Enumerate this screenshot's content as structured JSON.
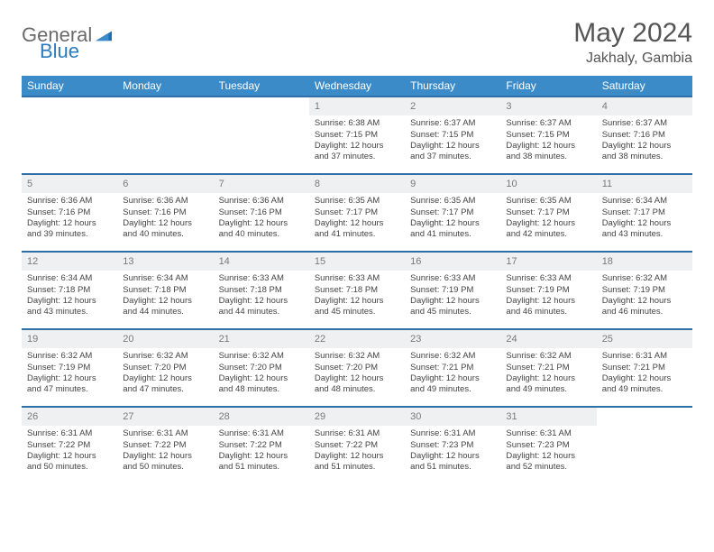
{
  "brand": {
    "part1": "General",
    "part2": "Blue"
  },
  "title": "May 2024",
  "location": "Jakhaly, Gambia",
  "colors": {
    "header_bg": "#3b8bc9",
    "header_text": "#ffffff",
    "daynum_bg": "#eef0f1",
    "daynum_text": "#7a7a7a",
    "row_border": "#2e6fa7",
    "body_text": "#444444",
    "brand_gray": "#6b6b6b",
    "brand_blue": "#2b7bbf"
  },
  "weekdays": [
    "Sunday",
    "Monday",
    "Tuesday",
    "Wednesday",
    "Thursday",
    "Friday",
    "Saturday"
  ],
  "weeks": [
    [
      {
        "n": "",
        "sr": "",
        "ss": "",
        "dl": ""
      },
      {
        "n": "",
        "sr": "",
        "ss": "",
        "dl": ""
      },
      {
        "n": "",
        "sr": "",
        "ss": "",
        "dl": ""
      },
      {
        "n": "1",
        "sr": "Sunrise: 6:38 AM",
        "ss": "Sunset: 7:15 PM",
        "dl": "Daylight: 12 hours and 37 minutes."
      },
      {
        "n": "2",
        "sr": "Sunrise: 6:37 AM",
        "ss": "Sunset: 7:15 PM",
        "dl": "Daylight: 12 hours and 37 minutes."
      },
      {
        "n": "3",
        "sr": "Sunrise: 6:37 AM",
        "ss": "Sunset: 7:15 PM",
        "dl": "Daylight: 12 hours and 38 minutes."
      },
      {
        "n": "4",
        "sr": "Sunrise: 6:37 AM",
        "ss": "Sunset: 7:16 PM",
        "dl": "Daylight: 12 hours and 38 minutes."
      }
    ],
    [
      {
        "n": "5",
        "sr": "Sunrise: 6:36 AM",
        "ss": "Sunset: 7:16 PM",
        "dl": "Daylight: 12 hours and 39 minutes."
      },
      {
        "n": "6",
        "sr": "Sunrise: 6:36 AM",
        "ss": "Sunset: 7:16 PM",
        "dl": "Daylight: 12 hours and 40 minutes."
      },
      {
        "n": "7",
        "sr": "Sunrise: 6:36 AM",
        "ss": "Sunset: 7:16 PM",
        "dl": "Daylight: 12 hours and 40 minutes."
      },
      {
        "n": "8",
        "sr": "Sunrise: 6:35 AM",
        "ss": "Sunset: 7:17 PM",
        "dl": "Daylight: 12 hours and 41 minutes."
      },
      {
        "n": "9",
        "sr": "Sunrise: 6:35 AM",
        "ss": "Sunset: 7:17 PM",
        "dl": "Daylight: 12 hours and 41 minutes."
      },
      {
        "n": "10",
        "sr": "Sunrise: 6:35 AM",
        "ss": "Sunset: 7:17 PM",
        "dl": "Daylight: 12 hours and 42 minutes."
      },
      {
        "n": "11",
        "sr": "Sunrise: 6:34 AM",
        "ss": "Sunset: 7:17 PM",
        "dl": "Daylight: 12 hours and 43 minutes."
      }
    ],
    [
      {
        "n": "12",
        "sr": "Sunrise: 6:34 AM",
        "ss": "Sunset: 7:18 PM",
        "dl": "Daylight: 12 hours and 43 minutes."
      },
      {
        "n": "13",
        "sr": "Sunrise: 6:34 AM",
        "ss": "Sunset: 7:18 PM",
        "dl": "Daylight: 12 hours and 44 minutes."
      },
      {
        "n": "14",
        "sr": "Sunrise: 6:33 AM",
        "ss": "Sunset: 7:18 PM",
        "dl": "Daylight: 12 hours and 44 minutes."
      },
      {
        "n": "15",
        "sr": "Sunrise: 6:33 AM",
        "ss": "Sunset: 7:18 PM",
        "dl": "Daylight: 12 hours and 45 minutes."
      },
      {
        "n": "16",
        "sr": "Sunrise: 6:33 AM",
        "ss": "Sunset: 7:19 PM",
        "dl": "Daylight: 12 hours and 45 minutes."
      },
      {
        "n": "17",
        "sr": "Sunrise: 6:33 AM",
        "ss": "Sunset: 7:19 PM",
        "dl": "Daylight: 12 hours and 46 minutes."
      },
      {
        "n": "18",
        "sr": "Sunrise: 6:32 AM",
        "ss": "Sunset: 7:19 PM",
        "dl": "Daylight: 12 hours and 46 minutes."
      }
    ],
    [
      {
        "n": "19",
        "sr": "Sunrise: 6:32 AM",
        "ss": "Sunset: 7:19 PM",
        "dl": "Daylight: 12 hours and 47 minutes."
      },
      {
        "n": "20",
        "sr": "Sunrise: 6:32 AM",
        "ss": "Sunset: 7:20 PM",
        "dl": "Daylight: 12 hours and 47 minutes."
      },
      {
        "n": "21",
        "sr": "Sunrise: 6:32 AM",
        "ss": "Sunset: 7:20 PM",
        "dl": "Daylight: 12 hours and 48 minutes."
      },
      {
        "n": "22",
        "sr": "Sunrise: 6:32 AM",
        "ss": "Sunset: 7:20 PM",
        "dl": "Daylight: 12 hours and 48 minutes."
      },
      {
        "n": "23",
        "sr": "Sunrise: 6:32 AM",
        "ss": "Sunset: 7:21 PM",
        "dl": "Daylight: 12 hours and 49 minutes."
      },
      {
        "n": "24",
        "sr": "Sunrise: 6:32 AM",
        "ss": "Sunset: 7:21 PM",
        "dl": "Daylight: 12 hours and 49 minutes."
      },
      {
        "n": "25",
        "sr": "Sunrise: 6:31 AM",
        "ss": "Sunset: 7:21 PM",
        "dl": "Daylight: 12 hours and 49 minutes."
      }
    ],
    [
      {
        "n": "26",
        "sr": "Sunrise: 6:31 AM",
        "ss": "Sunset: 7:22 PM",
        "dl": "Daylight: 12 hours and 50 minutes."
      },
      {
        "n": "27",
        "sr": "Sunrise: 6:31 AM",
        "ss": "Sunset: 7:22 PM",
        "dl": "Daylight: 12 hours and 50 minutes."
      },
      {
        "n": "28",
        "sr": "Sunrise: 6:31 AM",
        "ss": "Sunset: 7:22 PM",
        "dl": "Daylight: 12 hours and 51 minutes."
      },
      {
        "n": "29",
        "sr": "Sunrise: 6:31 AM",
        "ss": "Sunset: 7:22 PM",
        "dl": "Daylight: 12 hours and 51 minutes."
      },
      {
        "n": "30",
        "sr": "Sunrise: 6:31 AM",
        "ss": "Sunset: 7:23 PM",
        "dl": "Daylight: 12 hours and 51 minutes."
      },
      {
        "n": "31",
        "sr": "Sunrise: 6:31 AM",
        "ss": "Sunset: 7:23 PM",
        "dl": "Daylight: 12 hours and 52 minutes."
      },
      {
        "n": "",
        "sr": "",
        "ss": "",
        "dl": ""
      }
    ]
  ]
}
